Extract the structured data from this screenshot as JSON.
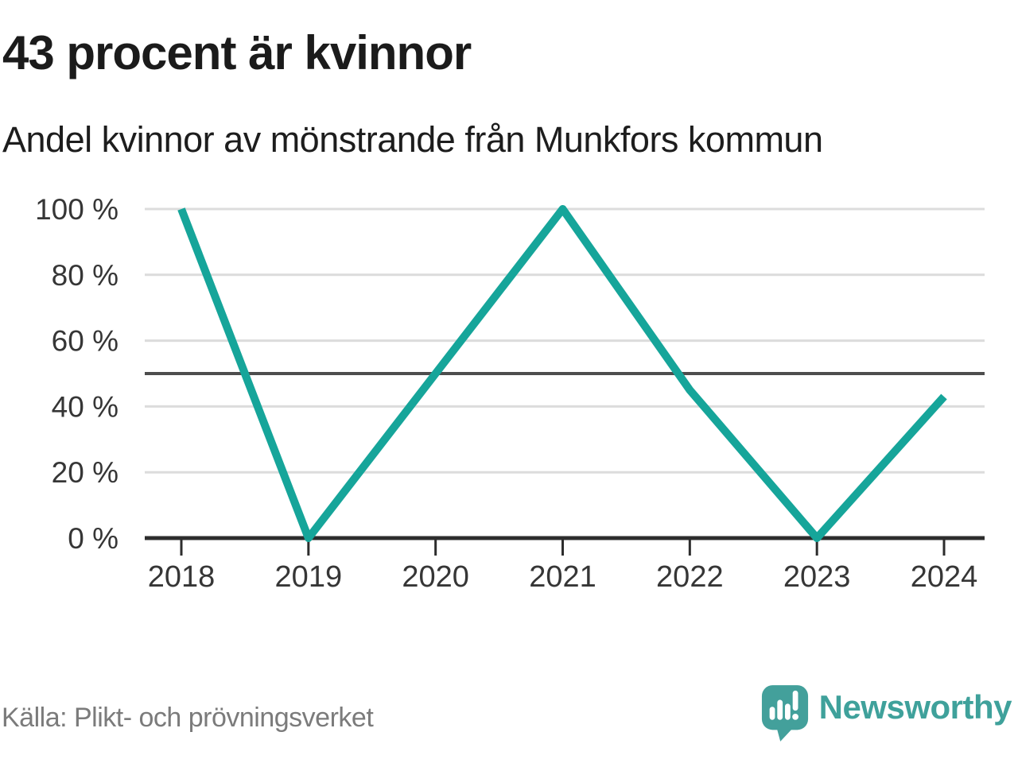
{
  "header": {
    "title": "43 procent är kvinnor",
    "subtitle": "Andel kvinnor av mönstrande från Munkfors kommun"
  },
  "chart_data": {
    "type": "line",
    "title": "43 procent är kvinnor",
    "subtitle": "Andel kvinnor av mönstrande från Munkfors kommun",
    "x": [
      "2018",
      "2019",
      "2020",
      "2021",
      "2022",
      "2023",
      "2024"
    ],
    "series": [
      {
        "name": "Andel kvinnor av mönstrande, Munkfors kommun",
        "values": [
          100,
          0,
          50,
          100,
          45,
          0,
          43
        ]
      }
    ],
    "ylim": [
      0,
      100
    ],
    "yticks": [
      0,
      20,
      40,
      60,
      80,
      100
    ],
    "ytick_suffix": " %",
    "reference_line": 50,
    "grid": true,
    "legend": "none",
    "line_color": "#16a59a",
    "grid_color": "#dcdcdc",
    "reference_line_color": "#4d4d4d",
    "axis_color": "#2d2d2d",
    "tick_label_color": "#363636"
  },
  "footer": {
    "source": "Källa: Plikt- och prövningsverket",
    "brand": "Newsworthy",
    "brand_color": "#3fa19b",
    "logo_color": "#43a09b"
  }
}
